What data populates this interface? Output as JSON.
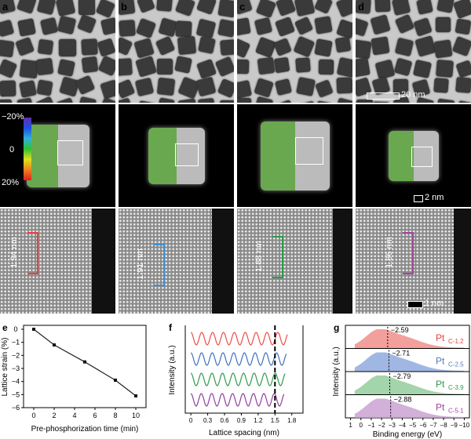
{
  "panels": {
    "a": "a",
    "b": "b",
    "c": "c",
    "d": "d",
    "e": "e",
    "f": "f",
    "g": "g"
  },
  "scale_bars": {
    "row1": "20 nm",
    "row2": "2 nm",
    "row3": "1 nm"
  },
  "colorbar": {
    "top": "−20%",
    "mid": "0",
    "bottom": "20%"
  },
  "spacings": [
    {
      "label": "1.94 nm",
      "color": "#e8413c"
    },
    {
      "label": "1.91 nm",
      "color": "#3d8fd6"
    },
    {
      "label": "1.88 nm",
      "color": "#2e9a4a"
    },
    {
      "label": "1.86 nm",
      "color": "#a0459b"
    }
  ],
  "chart_data": [
    {
      "type": "line",
      "panel": "e",
      "xlabel": "Pre-phosphorization time (min)",
      "ylabel": "Lattice strain (%)",
      "x": [
        0,
        2,
        5,
        8,
        10
      ],
      "y": [
        0,
        -1.2,
        -2.5,
        -3.9,
        -5.1
      ],
      "xticks": [
        "0",
        "2",
        "4",
        "6",
        "8",
        "10"
      ],
      "yticks": [
        "0",
        "−1",
        "−2",
        "−3",
        "−4",
        "−5",
        "−6"
      ],
      "xlim": [
        -1,
        11
      ],
      "ylim": [
        -6,
        0.3
      ]
    },
    {
      "type": "line",
      "panel": "f",
      "xlabel": "Lattice spacing (nm)",
      "ylabel": "Intensity (a.u.)",
      "xticks": [
        "0",
        "0.3",
        "0.6",
        "0.9",
        "1.2",
        "1.5",
        "1.8"
      ],
      "xlim": [
        -0.1,
        2.0
      ],
      "dashed_line_x": 1.5,
      "series": [
        {
          "name": "Pt C-1.2",
          "color": "#ee4b46",
          "period": 0.194
        },
        {
          "name": "Pt C-2.5",
          "color": "#3e6fc4",
          "period": 0.191
        },
        {
          "name": "Pt C-3.9",
          "color": "#2f9a4e",
          "period": 0.188
        },
        {
          "name": "Pt C-5.1",
          "color": "#8e3f9e",
          "period": 0.186
        }
      ]
    },
    {
      "type": "area",
      "panel": "g",
      "xlabel": "Binding energy (eV)",
      "ylabel": "Intensity (a.u.)",
      "xticks": [
        "1",
        "0",
        "−1",
        "−2",
        "−3",
        "−4",
        "−5",
        "−6",
        "−7",
        "−8",
        "−9",
        "−10"
      ],
      "xlim": [
        1.5,
        -10.5
      ],
      "series": [
        {
          "name": "Pt",
          "sub": "C-1.2",
          "center": -2.59,
          "center_label": "−2.59",
          "color": "#f08783",
          "text": "#e8413c"
        },
        {
          "name": "Pt",
          "sub": "C-2.5",
          "center": -2.71,
          "center_label": "−2.71",
          "color": "#8aa5dc",
          "text": "#5a78b8"
        },
        {
          "name": "Pt",
          "sub": "C-3.9",
          "center": -2.79,
          "center_label": "−2.79",
          "color": "#8cc996",
          "text": "#2e9a4a"
        },
        {
          "name": "Pt",
          "sub": "C-5.1",
          "center": -2.88,
          "center_label": "−2.88",
          "color": "#c79cd0",
          "text": "#a0459b"
        }
      ]
    }
  ]
}
